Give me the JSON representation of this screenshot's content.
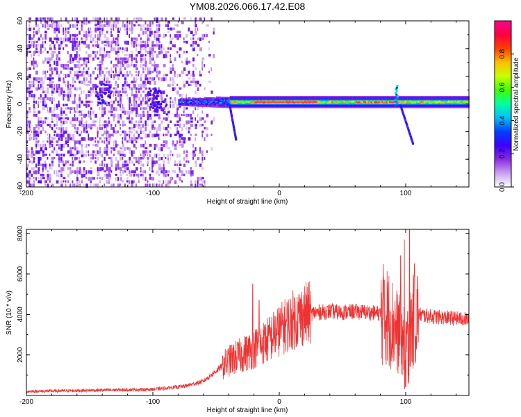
{
  "title": "YM08.2026.066.17.42.E08",
  "chart_data": [
    {
      "type": "heatmap",
      "title": "YM08.2026.066.17.42.E08",
      "xlabel": "Height of straight line (km)",
      "ylabel": "Frequency (Hz)",
      "xlim": [
        -200,
        150
      ],
      "ylim": [
        -60,
        60
      ],
      "x_ticks": [
        -200,
        -100,
        0,
        100
      ],
      "x_tick_labels": [
        "-200",
        "-100",
        "0",
        "100"
      ],
      "y_ticks": [
        -60,
        -40,
        -20,
        0,
        20,
        40,
        60
      ],
      "y_tick_labels": [
        "-60",
        "-40",
        "-20",
        "0",
        "20",
        "40",
        "60"
      ],
      "colorbar": {
        "label": "Normalized spectral amplitude",
        "range": [
          0,
          1
        ],
        "ticks": [
          0.0,
          0.2,
          0.4,
          0.6,
          0.8
        ],
        "tick_labels": [
          "0.0",
          "0.2",
          "0.4",
          "0.6",
          "0.8"
        ],
        "colormap": [
          "#ffffff",
          "#c9a0f0",
          "#8a2be2",
          "#3b00ff",
          "#0040ff",
          "#00c0ff",
          "#00ffa0",
          "#40ff00",
          "#c8ff00",
          "#ffc000",
          "#ff4000",
          "#ff0040",
          "#ff0090"
        ]
      },
      "features": [
        {
          "region": "noise",
          "x_range": [
            -200,
            -60
          ],
          "freq_range": [
            -60,
            60
          ],
          "amplitude_range": [
            0.0,
            0.2
          ]
        },
        {
          "region": "signal-band",
          "x_range": [
            -60,
            150
          ],
          "center_freq": 1,
          "half_width_hz": 4,
          "amplitude_range": [
            0.3,
            1.0
          ]
        },
        {
          "region": "tail",
          "x_range": [
            -40,
            -35
          ],
          "freq_range": [
            -25,
            0
          ]
        },
        {
          "region": "tail",
          "x_range": [
            95,
            105
          ],
          "freq_range": [
            -28,
            0
          ]
        },
        {
          "region": "peak",
          "x": 92,
          "freq": 15
        }
      ]
    },
    {
      "type": "line",
      "xlabel": "Height of straight line (km)",
      "ylabel": "SNR (10 * v/v)",
      "xlim": [
        -200,
        150
      ],
      "ylim": [
        0,
        8200
      ],
      "x_ticks": [
        -200,
        -100,
        0,
        100
      ],
      "x_tick_labels": [
        "-200",
        "-100",
        "0",
        "100"
      ],
      "y_ticks": [
        2000,
        4000,
        6000,
        8000
      ],
      "y_tick_labels": [
        "2000",
        "4000",
        "6000",
        "8000"
      ],
      "series": [
        {
          "name": "SNR",
          "color": "#ee3333",
          "x": [
            -200,
            -150,
            -100,
            -75,
            -60,
            -50,
            -40,
            -30,
            -20,
            -10,
            0,
            10,
            20,
            30,
            40,
            50,
            60,
            70,
            80,
            85,
            90,
            95,
            100,
            105,
            110,
            120,
            130,
            140,
            150
          ],
          "y": [
            200,
            250,
            300,
            450,
            700,
            1200,
            1700,
            2000,
            2300,
            2700,
            3200,
            3700,
            4000,
            4100,
            4150,
            4100,
            4150,
            4100,
            4050,
            3950,
            3500,
            3000,
            2500,
            3500,
            4000,
            3900,
            3850,
            3800,
            3750
          ],
          "spikes": [
            {
              "x": -21,
              "y": 5500
            },
            {
              "x": -16,
              "y": 4700
            },
            {
              "x": 83,
              "y": 5700
            },
            {
              "x": 96,
              "y": 6900
            },
            {
              "x": 99,
              "y": 7700
            },
            {
              "x": 103,
              "y": 8200
            },
            {
              "x": 107,
              "y": 6500
            }
          ]
        }
      ]
    }
  ]
}
